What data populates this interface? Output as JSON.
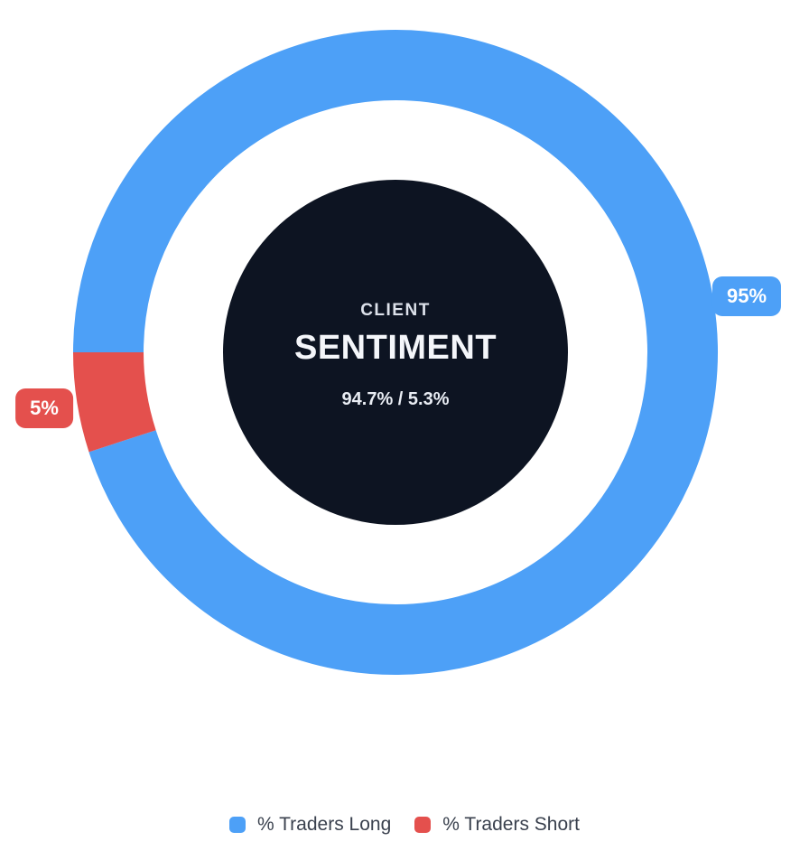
{
  "chart_data": {
    "type": "pie",
    "variant": "donut",
    "title": "CLIENT SENTIMENT",
    "center": {
      "eyebrow": "CLIENT",
      "title": "SENTIMENT",
      "ratio": "94.7% / 5.3%"
    },
    "segments": [
      {
        "name": "% Traders Long",
        "percent": 95,
        "percent_exact": 94.7,
        "badge": "95%",
        "color": "#4DA0F7"
      },
      {
        "name": "% Traders Short",
        "percent": 5,
        "percent_exact": 5.3,
        "badge": "5%",
        "color": "#E4504D"
      }
    ],
    "rotation_deg_cw_from_top": 270,
    "direction": "clockwise",
    "legend_position": "bottom",
    "colors": {
      "center_disc": "#0D1422",
      "center_text": "#F4F6FA",
      "badge_text": "#FFFFFF",
      "legend_text": "#3A414E",
      "background": "#FFFFFF"
    }
  }
}
